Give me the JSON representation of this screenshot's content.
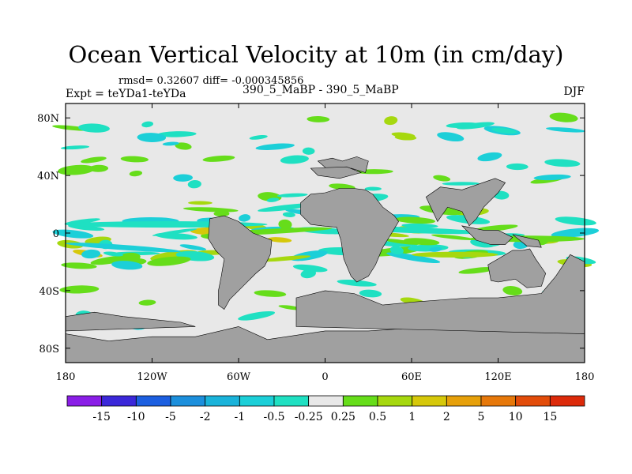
{
  "chart_data": {
    "type": "heatmap",
    "title": "Ocean Vertical Velocity at 10m (in cm/day)",
    "stats": "rmsd= 0.32607 diff= -0.000345856",
    "left_label": "Expt = teYDa1-teYDa",
    "center_label": "390_5_MaBP - 390_5_MaBP",
    "right_label": "DJF",
    "units": "cm/day",
    "x_ticks": [
      "180",
      "120W",
      "60W",
      "0",
      "60E",
      "120E",
      "180"
    ],
    "x_tick_values": [
      -180,
      -120,
      -60,
      0,
      60,
      120,
      180
    ],
    "y_ticks": [
      "80N",
      "40N",
      "0",
      "40S",
      "80S"
    ],
    "y_tick_values": [
      80,
      40,
      0,
      -40,
      -80
    ],
    "xlim": [
      -180,
      180
    ],
    "ylim": [
      -90,
      90
    ],
    "colorbar": {
      "levels": [
        "-15",
        "-10",
        "-5",
        "-2",
        "-1",
        "-0.5",
        "-0.25",
        "0.25",
        "0.5",
        "1",
        "2",
        "5",
        "10",
        "15"
      ],
      "colors": [
        "#8a1ee6",
        "#3b28d9",
        "#1c5fe0",
        "#1c8fdc",
        "#1ab3da",
        "#1ccfd8",
        "#1fe0c2",
        "#e8e8e8",
        "#66dd1a",
        "#a6d80f",
        "#d6c80a",
        "#e6a00a",
        "#e6780a",
        "#e24c0a",
        "#dc2a0a"
      ]
    },
    "land_color": "#a0a0a0",
    "no_change_color": "#e8e8e8"
  }
}
